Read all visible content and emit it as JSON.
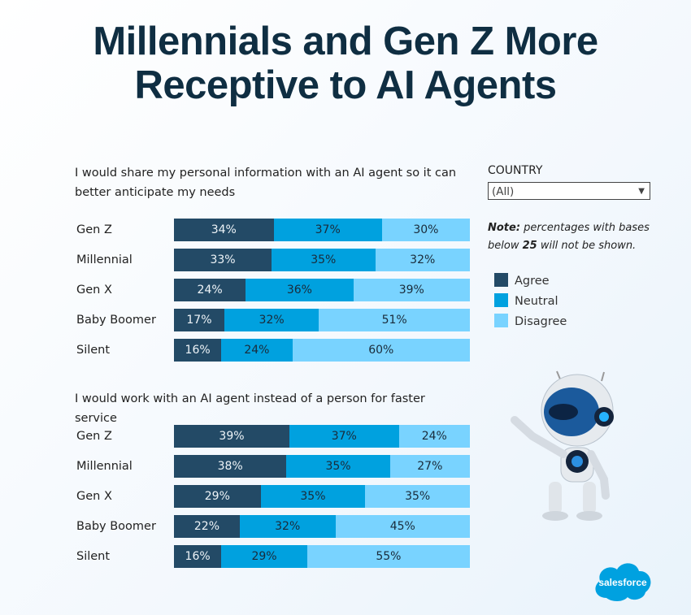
{
  "title_line1": "Millennials and Gen Z More",
  "title_line2": "Receptive to AI Agents",
  "filter": {
    "label": "COUNTRY",
    "value": "(All)"
  },
  "note": {
    "bold": "Note:",
    "text1": " percentages with bases below ",
    "num": "25",
    "text2": " will not be shown."
  },
  "colors": {
    "Agree": "#234a66",
    "Neutral": "#00a1df",
    "Disagree": "#79d3ff"
  },
  "logo": "salesforce",
  "chart_data": [
    {
      "type": "bar",
      "orientation": "horizontal-stacked-100",
      "title": "I would share my personal information with an AI agent so it can better anticipate my needs",
      "categories": [
        "Gen Z",
        "Millennial",
        "Gen X",
        "Baby Boomer",
        "Silent"
      ],
      "series": [
        {
          "name": "Agree",
          "values": [
            34,
            33,
            24,
            17,
            16
          ]
        },
        {
          "name": "Neutral",
          "values": [
            37,
            35,
            36,
            32,
            24
          ]
        },
        {
          "name": "Disagree",
          "values": [
            30,
            32,
            39,
            51,
            60
          ]
        }
      ],
      "unit": "%",
      "legend": "right"
    },
    {
      "type": "bar",
      "orientation": "horizontal-stacked-100",
      "title": "I would work with an AI agent instead of a person for faster service",
      "categories": [
        "Gen Z",
        "Millennial",
        "Gen X",
        "Baby Boomer",
        "Silent"
      ],
      "series": [
        {
          "name": "Agree",
          "values": [
            39,
            38,
            29,
            22,
            16
          ]
        },
        {
          "name": "Neutral",
          "values": [
            37,
            35,
            35,
            32,
            29
          ]
        },
        {
          "name": "Disagree",
          "values": [
            24,
            27,
            35,
            45,
            55
          ]
        }
      ],
      "unit": "%",
      "legend": "right"
    }
  ]
}
